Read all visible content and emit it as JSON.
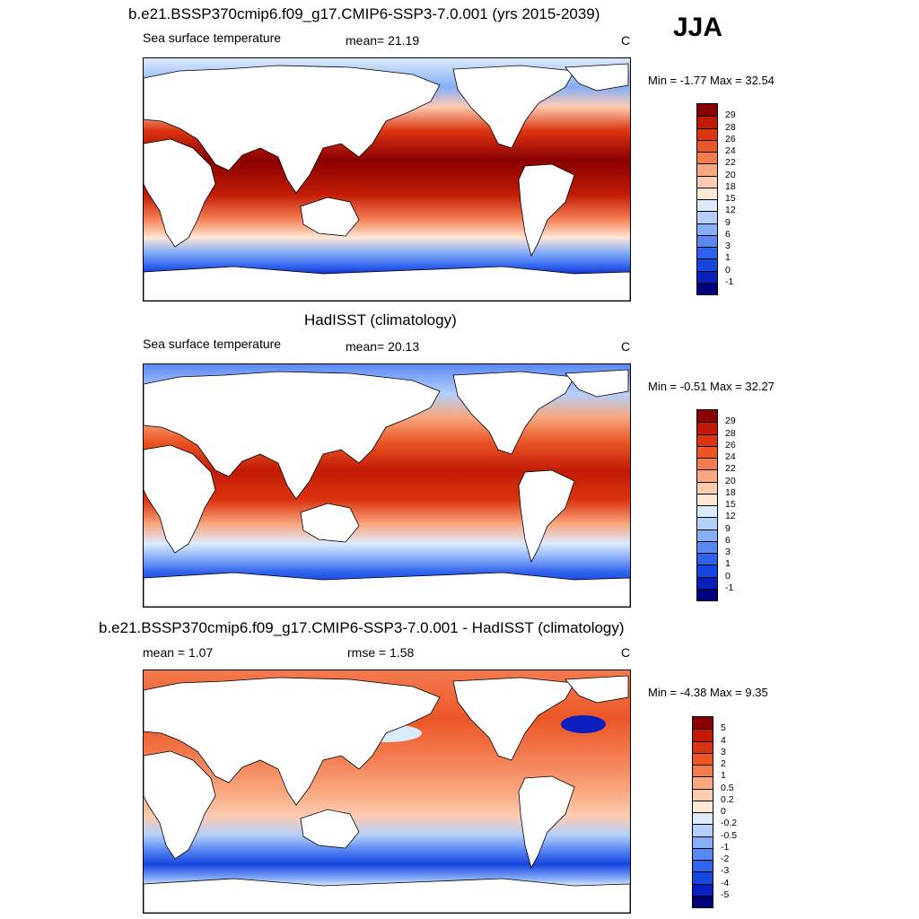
{
  "season": "JJA",
  "colors": {
    "abs_scale": [
      "#00007f",
      "#0a1fbf",
      "#1446e0",
      "#2f62ee",
      "#5a89f4",
      "#87aef8",
      "#b4cffb",
      "#dceafd",
      "#ffe7d6",
      "#fdcbb0",
      "#f9a77f",
      "#f47b4f",
      "#ec5626",
      "#dc3410",
      "#c21a04",
      "#8a0000"
    ],
    "diff_scale": [
      "#00007f",
      "#0a1fbf",
      "#1446e0",
      "#2f62ee",
      "#5a89f4",
      "#87aef8",
      "#b4cffb",
      "#dceafd",
      "#ffffff",
      "#ffe7d6",
      "#fdcbb0",
      "#f9a77f",
      "#f47b4f",
      "#ec5626",
      "#dc3410",
      "#c21a04",
      "#8a0000"
    ]
  },
  "panels": [
    {
      "title": "b.e21.BSSP370cmip6.f09_g17.CMIP6-SSP3-7.0.001 (yrs 2015-2039)",
      "left_label": "Sea surface temperature",
      "mid_label": "mean=  21.19",
      "unit": "C",
      "minmax": "Min =  -1.77 Max =  32.54",
      "ticks": [
        "29",
        "28",
        "26",
        "24",
        "22",
        "20",
        "18",
        "15",
        "12",
        "9",
        "6",
        "3",
        "1",
        "0",
        "-1"
      ]
    },
    {
      "title": "HadISST (climatology)",
      "left_label": "Sea surface temperature",
      "mid_label": "mean=  20.13",
      "unit": "C",
      "minmax": "Min =  -0.51 Max =  32.27",
      "ticks": [
        "29",
        "28",
        "26",
        "24",
        "22",
        "20",
        "18",
        "15",
        "12",
        "9",
        "6",
        "3",
        "1",
        "0",
        "-1"
      ]
    },
    {
      "title": "b.e21.BSSP370cmip6.f09_g17.CMIP6-SSP3-7.0.001 - HadISST (climatology)",
      "left_label": "mean =   1.07",
      "mid_label": "rmse =   1.58",
      "unit": "C",
      "minmax": "Min =  -4.38 Max =   9.35",
      "ticks": [
        "5",
        "4",
        "3",
        "2",
        "1",
        "0.5",
        "0.2",
        "0",
        "-0.2",
        "-0.5",
        "-1",
        "-2",
        "-3",
        "-4",
        "-5"
      ]
    }
  ],
  "chart_data": [
    {
      "type": "heatmap",
      "title": "b.e21.BSSP370cmip6.f09_g17.CMIP6-SSP3-7.0.001 (yrs 2015-2039)",
      "variable": "Sea surface temperature",
      "unit": "C",
      "season": "JJA",
      "mean": 21.19,
      "min": -1.77,
      "max": 32.54,
      "levels": [
        -1,
        0,
        1,
        3,
        6,
        9,
        12,
        15,
        18,
        20,
        22,
        24,
        26,
        28,
        29
      ]
    },
    {
      "type": "heatmap",
      "title": "HadISST (climatology)",
      "variable": "Sea surface temperature",
      "unit": "C",
      "season": "JJA",
      "mean": 20.13,
      "min": -0.51,
      "max": 32.27,
      "levels": [
        -1,
        0,
        1,
        3,
        6,
        9,
        12,
        15,
        18,
        20,
        22,
        24,
        26,
        28,
        29
      ]
    },
    {
      "type": "heatmap",
      "title": "b.e21.BSSP370cmip6.f09_g17.CMIP6-SSP3-7.0.001 - HadISST (climatology)",
      "unit": "C",
      "season": "JJA",
      "mean": 1.07,
      "rmse": 1.58,
      "min": -4.38,
      "max": 9.35,
      "levels": [
        -5,
        -4,
        -3,
        -2,
        -1,
        -0.5,
        -0.2,
        0,
        0.2,
        0.5,
        1,
        2,
        3,
        4,
        5
      ]
    }
  ]
}
